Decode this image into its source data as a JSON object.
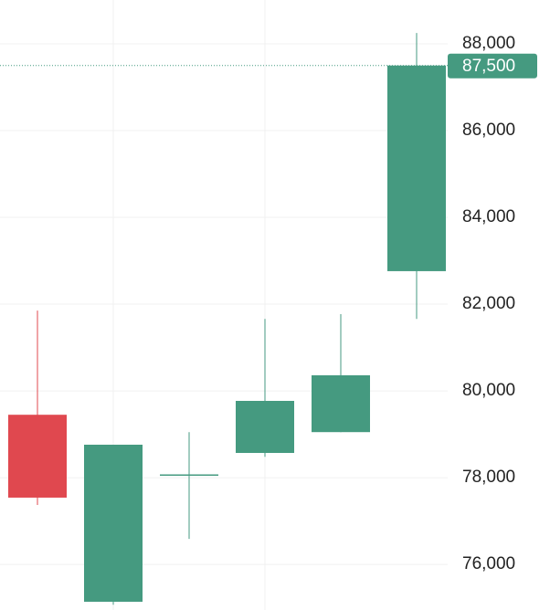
{
  "chart_data": {
    "type": "candlestick",
    "categories": [
      null,
      null,
      null,
      null,
      null,
      null
    ],
    "open": [
      79450,
      75140,
      78060,
      78570,
      79050,
      82760
    ],
    "high": [
      81850,
      78760,
      79050,
      81660,
      81770,
      88250
    ],
    "low": [
      77370,
      75070,
      76590,
      78480,
      79050,
      81660
    ],
    "close": [
      77540,
      78760,
      78060,
      79770,
      80360,
      87500
    ],
    "up_color": "#459a80",
    "down_color": "#e0484f",
    "ylim": [
      74950,
      89010
    ],
    "yticks": [
      {
        "value": 76000,
        "label": "76,000"
      },
      {
        "value": 78000,
        "label": "78,000"
      },
      {
        "value": 80000,
        "label": "80,000"
      },
      {
        "value": 82000,
        "label": "82,000"
      },
      {
        "value": 84000,
        "label": "84,000"
      },
      {
        "value": 86000,
        "label": "86,000"
      },
      {
        "value": 88000,
        "label": "88,000"
      }
    ],
    "grid": true,
    "last_price": {
      "value": 87500,
      "label": "87,500"
    }
  }
}
